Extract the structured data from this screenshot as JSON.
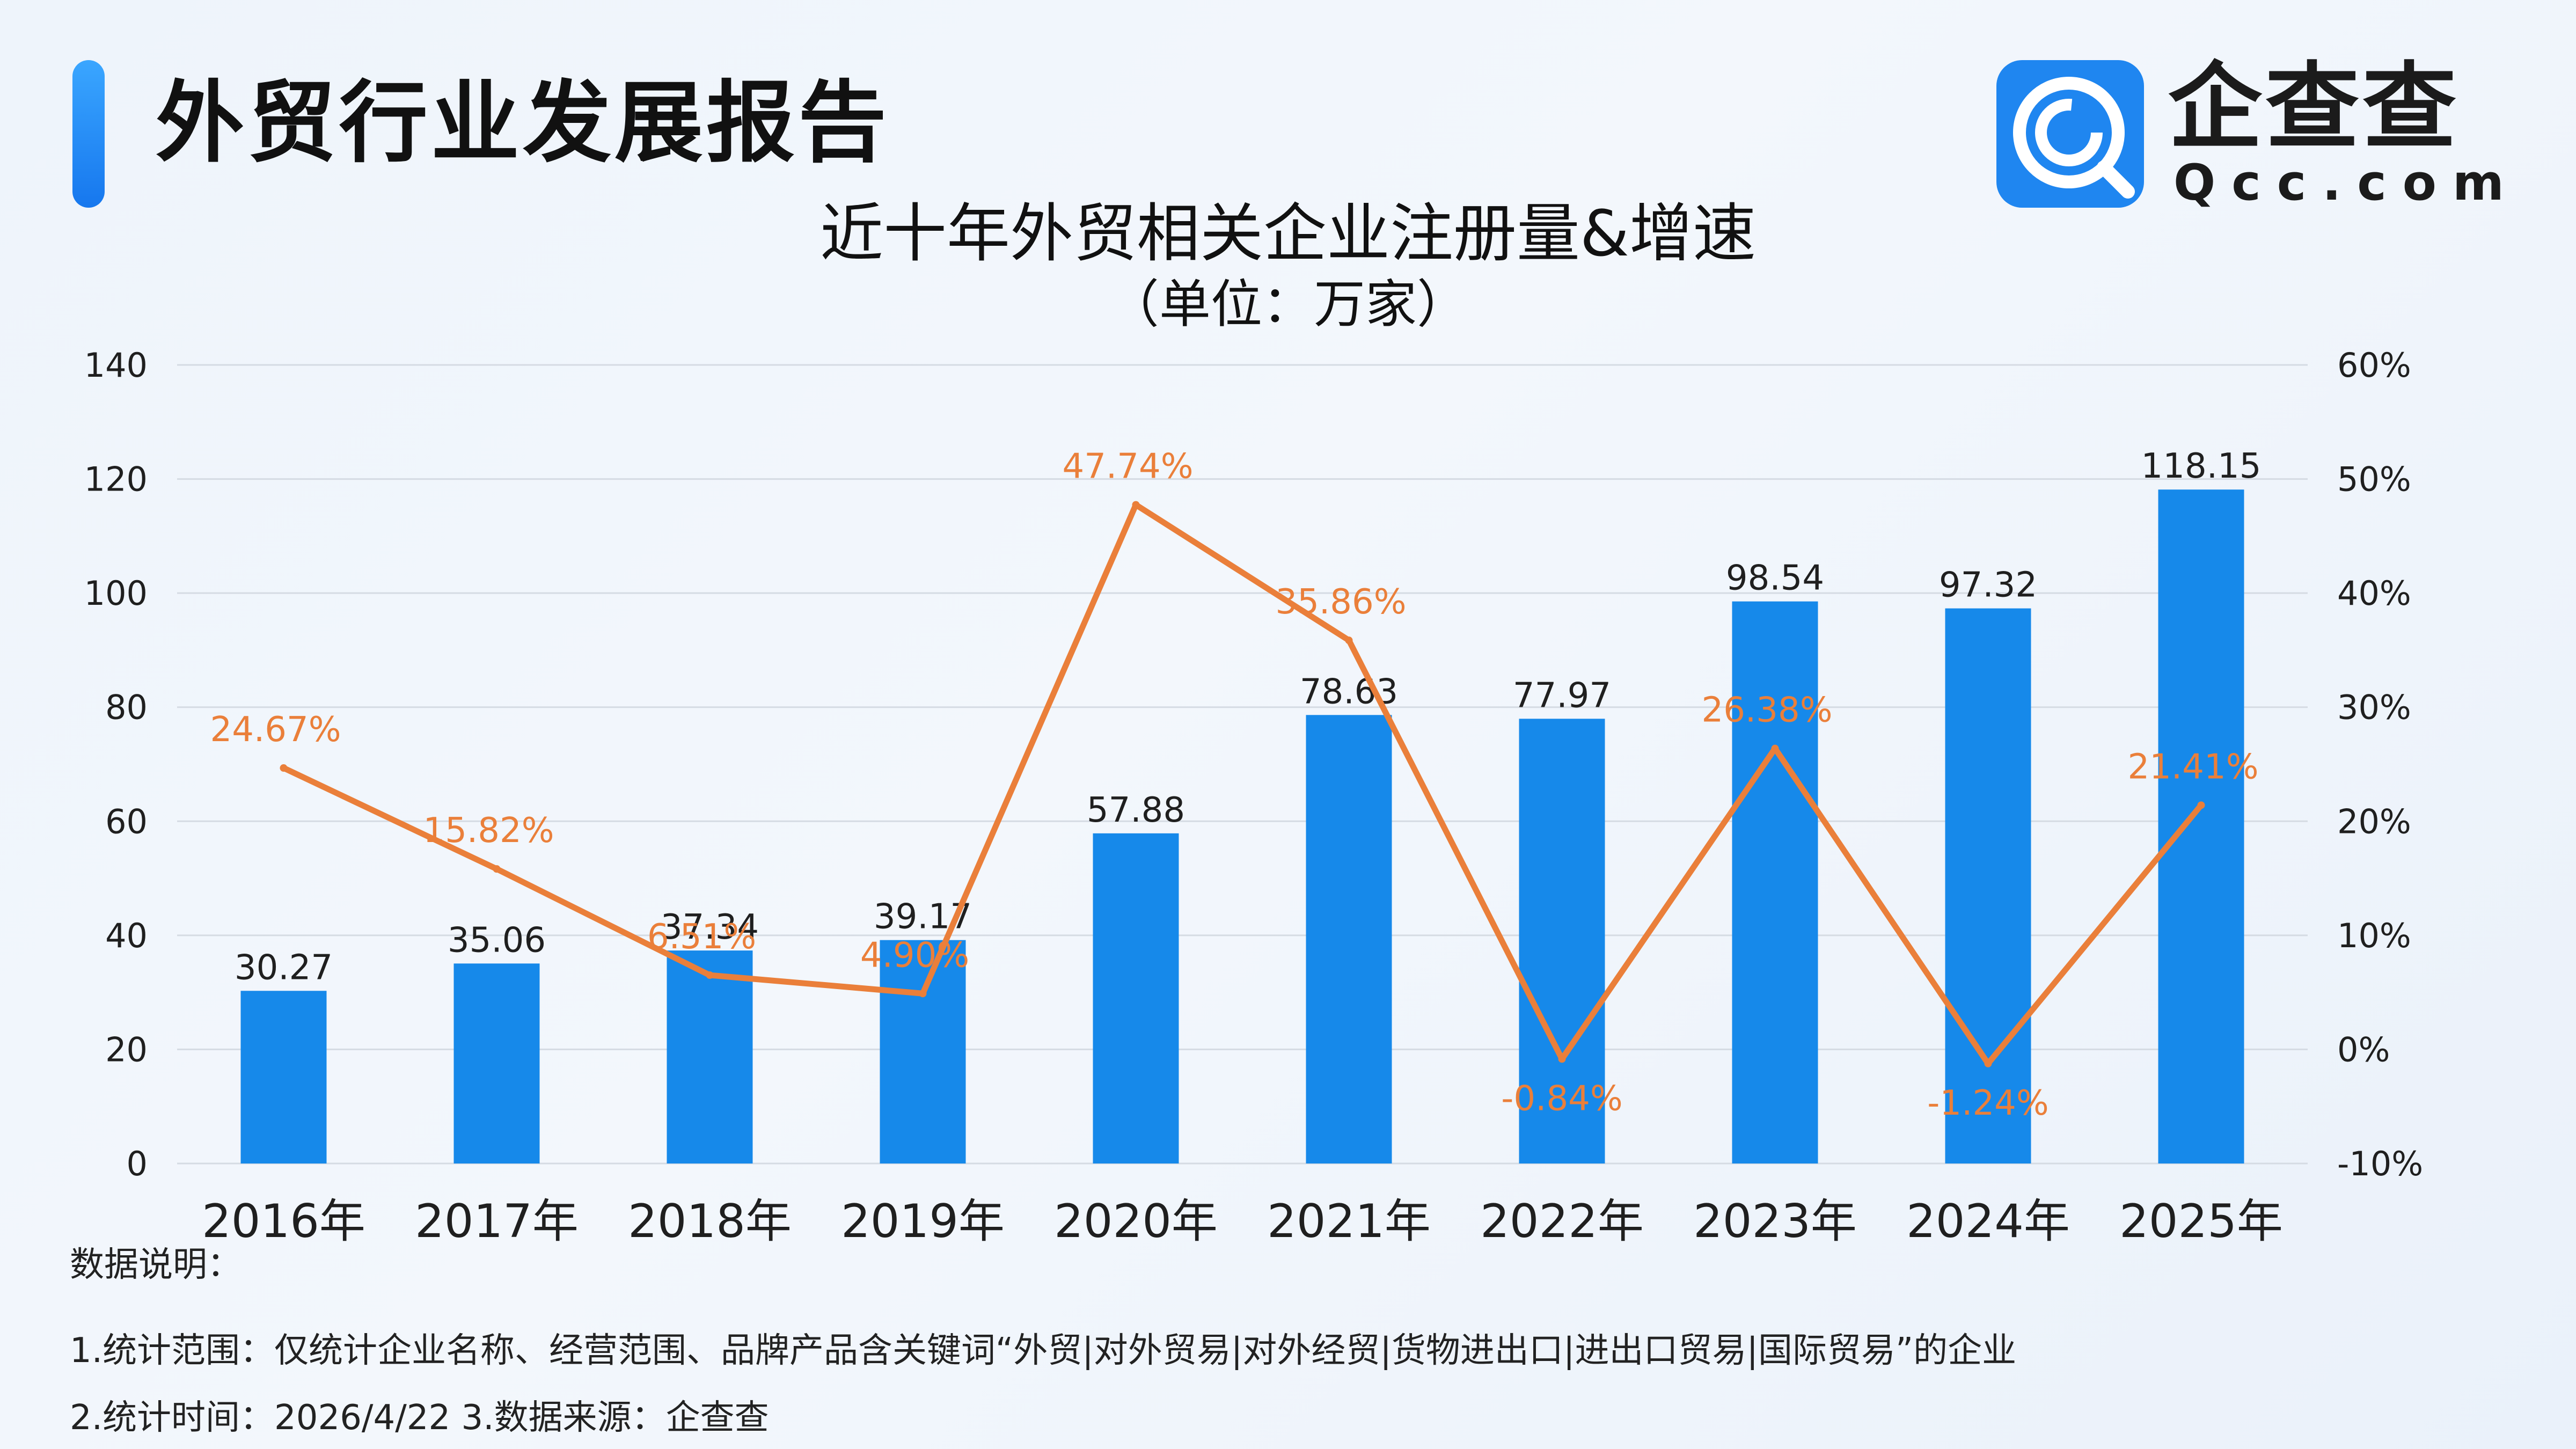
{
  "header": {
    "title": "外贸行业发展报告",
    "logo_brand": "企查查",
    "logo_domain": "Qcc.com"
  },
  "chart_data": {
    "type": "bar+line",
    "title": "近十年外贸相关企业注册量&增速",
    "subtitle": "（单位：万家）",
    "categories": [
      "2016年",
      "2017年",
      "2018年",
      "2019年",
      "2020年",
      "2021年",
      "2022年",
      "2023年",
      "2024年",
      "2025年"
    ],
    "series": [
      {
        "name": "注册量",
        "type": "bar",
        "axis": "left",
        "values": [
          30.27,
          35.06,
          37.34,
          39.17,
          57.88,
          78.63,
          77.97,
          98.54,
          97.32,
          118.15
        ],
        "labels": [
          "30.27",
          "35.06",
          "37.34",
          "39.17",
          "57.88",
          "78.63",
          "77.97",
          "98.54",
          "97.32",
          "118.15"
        ]
      },
      {
        "name": "增速",
        "type": "line",
        "axis": "right",
        "values": [
          24.67,
          15.82,
          6.51,
          4.9,
          47.74,
          35.86,
          -0.84,
          26.38,
          -1.24,
          21.41
        ],
        "labels": [
          "24.67%",
          "15.82%",
          "6.51%",
          "4.90%",
          "47.74%",
          "35.86%",
          "-0.84%",
          "26.38%",
          "-1.24%",
          "21.41%"
        ]
      }
    ],
    "y_left": {
      "min": 0,
      "max": 140,
      "step": 20,
      "ticks": [
        "0",
        "20",
        "40",
        "60",
        "80",
        "100",
        "120",
        "140"
      ]
    },
    "y_right": {
      "min": -10,
      "max": 60,
      "step": 10,
      "ticks": [
        "-10%",
        "0%",
        "10%",
        "20%",
        "30%",
        "40%",
        "50%",
        "60%"
      ]
    },
    "grid": true,
    "colors": {
      "bar": "#1689ea",
      "line": "#ea7f3a",
      "grid": "#d5dbe3",
      "text": "#1f1f1f"
    }
  },
  "notes": {
    "heading": "数据说明：",
    "line1": "1.统计范围：仅统计企业名称、经营范围、品牌产品含关键词“外贸|对外贸易|对外经贸|货物进出口|进出口贸易|国际贸易”的企业",
    "line2": "2.统计时间：2026/4/22  3.数据来源：企查查"
  }
}
